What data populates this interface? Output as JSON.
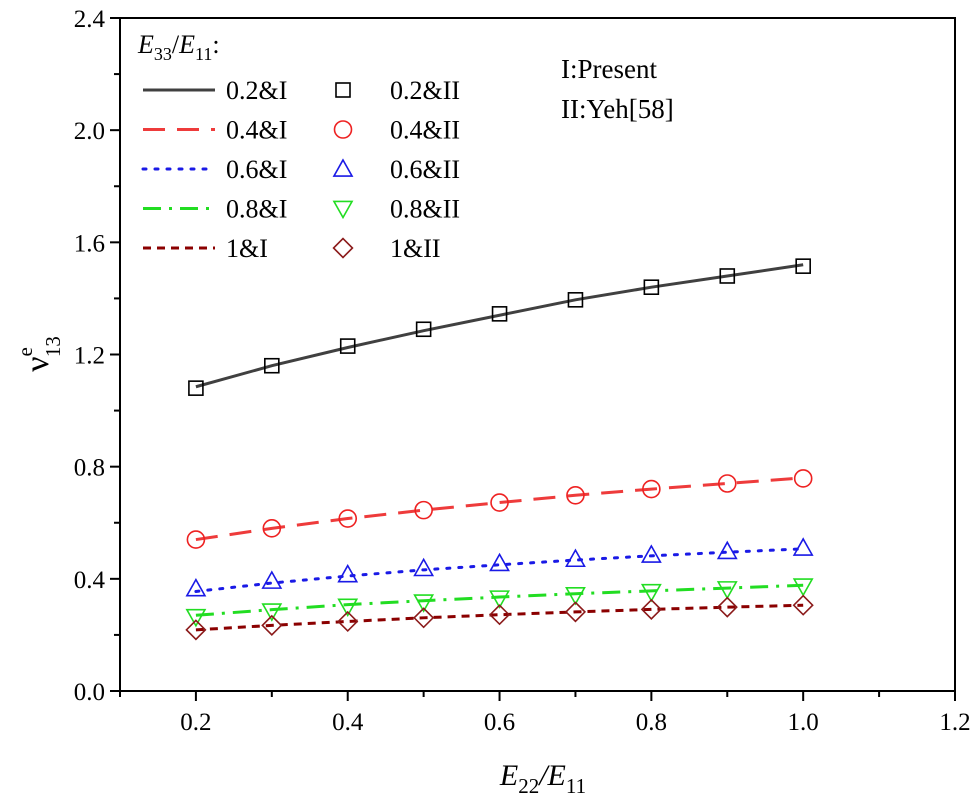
{
  "chart_data": {
    "type": "line",
    "xlabel": {
      "base": "E",
      "sub": "22",
      "sep": "/",
      "base2": "E",
      "sub2": "11"
    },
    "ylabel": {
      "base": "ν",
      "sup": "e",
      "sub": "13"
    },
    "xlim": [
      0.1,
      1.2
    ],
    "ylim": [
      0.0,
      2.4
    ],
    "xticks": [
      0.2,
      0.4,
      0.6,
      0.8,
      1.0,
      1.2
    ],
    "xtick_labels": [
      "0.2",
      "0.4",
      "0.6",
      "0.8",
      "1.0",
      "1.2"
    ],
    "yticks": [
      0.0,
      0.4,
      0.8,
      1.2,
      1.6,
      2.0,
      2.4
    ],
    "ytick_labels": [
      "0.0",
      "0.4",
      "0.8",
      "1.2",
      "1.6",
      "2.0",
      "2.4"
    ],
    "grid": false,
    "legend_title": {
      "base": "E",
      "sub": "33",
      "sep": "/",
      "base2": "E",
      "sub2": "11",
      "tail": ":"
    },
    "legend_position": "top-left",
    "notes": [
      "I:Present",
      "II:Yeh[58]"
    ],
    "x": [
      0.2,
      0.3,
      0.4,
      0.5,
      0.6,
      0.7,
      0.8,
      0.9,
      1.0
    ],
    "series": [
      {
        "name": "0.2&I",
        "kind": "line",
        "style": "solid",
        "color": "#404040",
        "values": [
          1.085,
          1.16,
          1.225,
          1.285,
          1.34,
          1.395,
          1.44,
          1.48,
          1.52
        ]
      },
      {
        "name": "0.4&I",
        "kind": "line",
        "style": "dash",
        "color": "#ee3b3b",
        "values": [
          0.54,
          0.58,
          0.615,
          0.645,
          0.672,
          0.698,
          0.72,
          0.74,
          0.76
        ]
      },
      {
        "name": "0.6&I",
        "kind": "line",
        "style": "dot",
        "color": "#1a1ae6",
        "values": [
          0.355,
          0.385,
          0.41,
          0.432,
          0.45,
          0.467,
          0.482,
          0.495,
          0.507
        ]
      },
      {
        "name": "0.8&I",
        "kind": "line",
        "style": "dashdot",
        "color": "#22dd22",
        "values": [
          0.27,
          0.29,
          0.308,
          0.322,
          0.335,
          0.347,
          0.357,
          0.367,
          0.377
        ]
      },
      {
        "name": "1&I",
        "kind": "line",
        "style": "shortdash",
        "color": "#8b0000",
        "values": [
          0.218,
          0.234,
          0.248,
          0.261,
          0.272,
          0.282,
          0.291,
          0.299,
          0.306
        ]
      },
      {
        "name": "0.2&II",
        "kind": "marker",
        "marker": "square",
        "color": "#000000",
        "values": [
          1.08,
          1.16,
          1.23,
          1.29,
          1.345,
          1.395,
          1.44,
          1.48,
          1.515
        ]
      },
      {
        "name": "0.4&II",
        "kind": "marker",
        "marker": "circle",
        "color": "#ee2222",
        "values": [
          0.54,
          0.58,
          0.615,
          0.645,
          0.672,
          0.698,
          0.72,
          0.74,
          0.758
        ]
      },
      {
        "name": "0.6&II",
        "kind": "marker",
        "marker": "triangle-up",
        "color": "#1a1ae6",
        "values": [
          0.365,
          0.392,
          0.415,
          0.437,
          0.455,
          0.47,
          0.485,
          0.498,
          0.51
        ]
      },
      {
        "name": "0.8&II",
        "kind": "marker",
        "marker": "triangle-down",
        "color": "#22dd22",
        "values": [
          0.265,
          0.285,
          0.302,
          0.317,
          0.331,
          0.343,
          0.354,
          0.364,
          0.374
        ]
      },
      {
        "name": "1&II",
        "kind": "marker",
        "marker": "diamond",
        "color": "#8b1a1a",
        "values": [
          0.218,
          0.234,
          0.248,
          0.261,
          0.272,
          0.282,
          0.291,
          0.299,
          0.306
        ]
      }
    ],
    "legend_layout": [
      [
        "0.2&I",
        "0.2&II"
      ],
      [
        "0.4&I",
        "0.4&II"
      ],
      [
        "0.6&I",
        "0.6&II"
      ],
      [
        "0.8&I",
        "0.8&II"
      ],
      [
        "1&I",
        "1&II"
      ]
    ]
  }
}
